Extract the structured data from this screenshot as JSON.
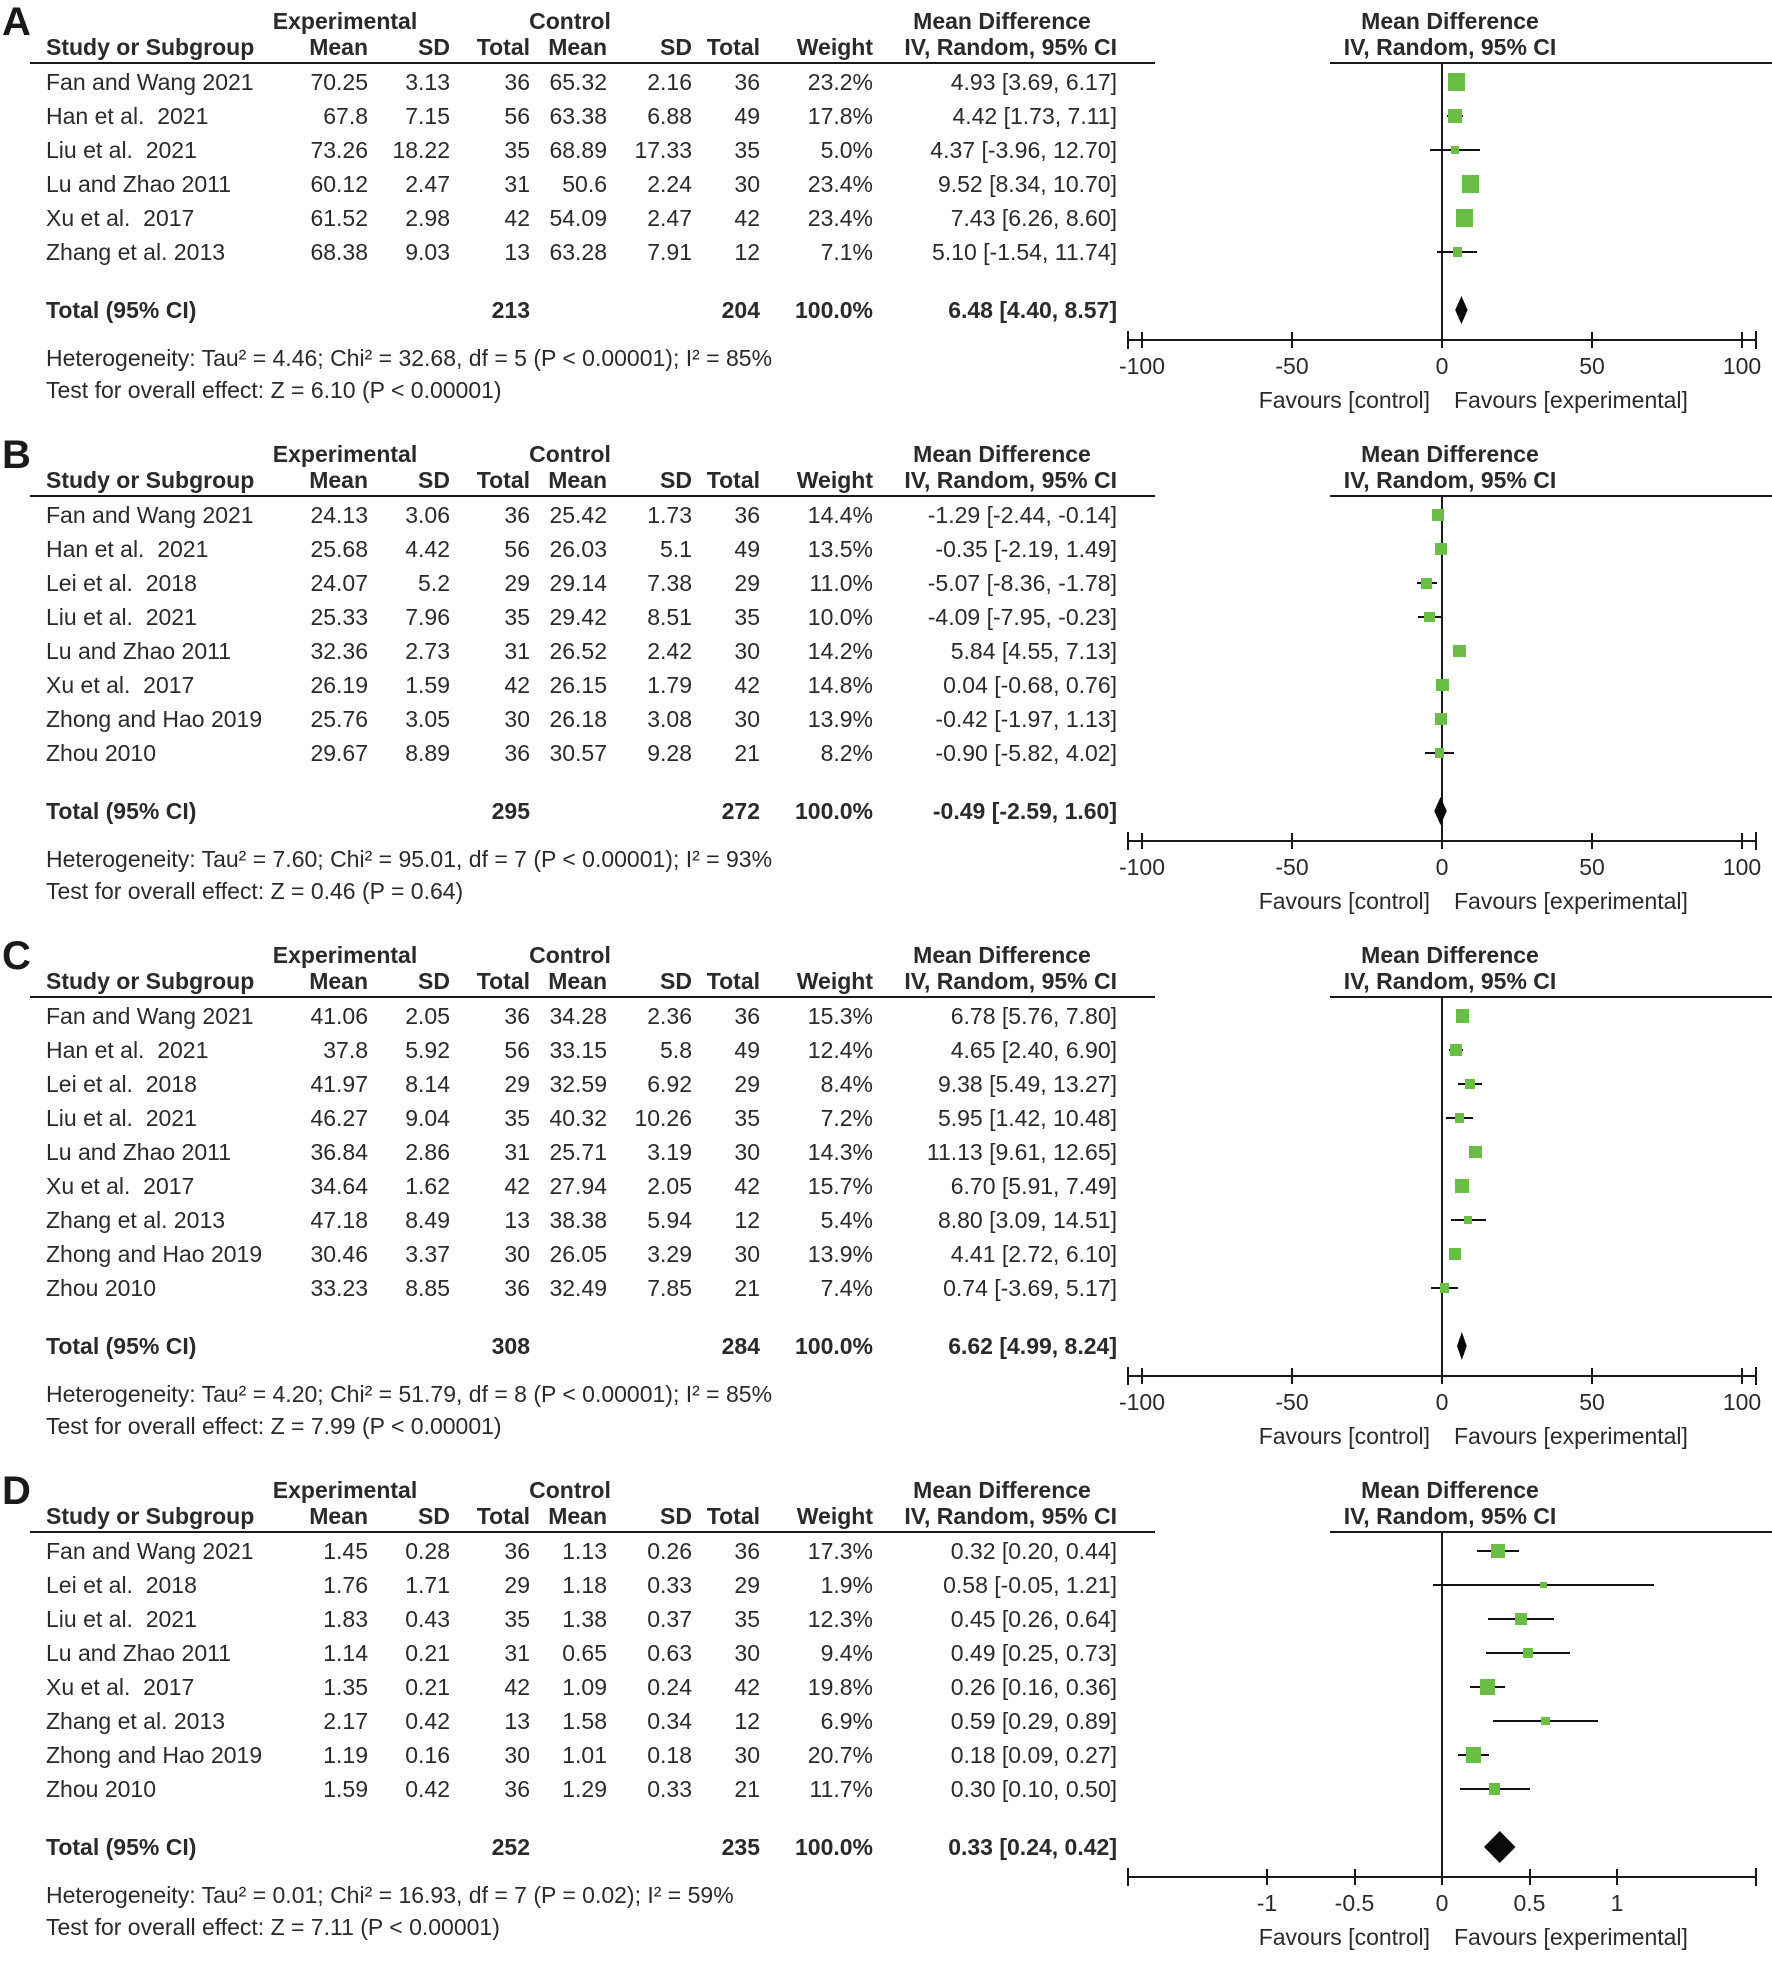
{
  "figure_title": "",
  "accent_color": "#6abe46",
  "line_color": "#1a1a1a",
  "columns": {
    "study": "Study or Subgroup",
    "mean": "Mean",
    "sd": "SD",
    "total": "Total",
    "weight": "Weight",
    "ci": "IV, Random, 95% CI",
    "group_experimental": "Experimental",
    "group_control": "Control",
    "md_text_header": "Mean Difference",
    "md_plot_header": "Mean Difference"
  },
  "chart_data": [
    {
      "type": "forest",
      "panel": "A",
      "studies": [
        {
          "label": "Fan and Wang 2021",
          "exp_mean": "70.25",
          "exp_sd": "3.13",
          "exp_total": "36",
          "ctl_mean": "65.32",
          "ctl_sd": "2.16",
          "ctl_total": "36",
          "weight": "23.2%",
          "weight_val": 23.2,
          "ci_text": "4.93 [3.69, 6.17]",
          "md": 4.93,
          "lo": 3.69,
          "hi": 6.17
        },
        {
          "label": "Han et al.  2021",
          "exp_mean": "67.8",
          "exp_sd": "7.15",
          "exp_total": "56",
          "ctl_mean": "63.38",
          "ctl_sd": "6.88",
          "ctl_total": "49",
          "weight": "17.8%",
          "weight_val": 17.8,
          "ci_text": "4.42 [1.73, 7.11]",
          "md": 4.42,
          "lo": 1.73,
          "hi": 7.11
        },
        {
          "label": "Liu et al.  2021",
          "exp_mean": "73.26",
          "exp_sd": "18.22",
          "exp_total": "35",
          "ctl_mean": "68.89",
          "ctl_sd": "17.33",
          "ctl_total": "35",
          "weight": "5.0%",
          "weight_val": 5.0,
          "ci_text": "4.37 [-3.96, 12.70]",
          "md": 4.37,
          "lo": -3.96,
          "hi": 12.7
        },
        {
          "label": "Lu and Zhao 2011",
          "exp_mean": "60.12",
          "exp_sd": "2.47",
          "exp_total": "31",
          "ctl_mean": "50.6",
          "ctl_sd": "2.24",
          "ctl_total": "30",
          "weight": "23.4%",
          "weight_val": 23.4,
          "ci_text": "9.52 [8.34, 10.70]",
          "md": 9.52,
          "lo": 8.34,
          "hi": 10.7
        },
        {
          "label": "Xu et al.  2017",
          "exp_mean": "61.52",
          "exp_sd": "2.98",
          "exp_total": "42",
          "ctl_mean": "54.09",
          "ctl_sd": "2.47",
          "ctl_total": "42",
          "weight": "23.4%",
          "weight_val": 23.4,
          "ci_text": "7.43 [6.26, 8.60]",
          "md": 7.43,
          "lo": 6.26,
          "hi": 8.6
        },
        {
          "label": "Zhang et al. 2013",
          "exp_mean": "68.38",
          "exp_sd": "9.03",
          "exp_total": "13",
          "ctl_mean": "63.28",
          "ctl_sd": "7.91",
          "ctl_total": "12",
          "weight": "7.1%",
          "weight_val": 7.1,
          "ci_text": "5.10 [-1.54, 11.74]",
          "md": 5.1,
          "lo": -1.54,
          "hi": 11.74
        }
      ],
      "total": {
        "label": "Total (95% CI)",
        "exp_total": "213",
        "ctl_total": "204",
        "weight": "100.0%",
        "ci_text": "6.48 [4.40, 8.57]",
        "md": 6.48,
        "lo": 4.4,
        "hi": 8.57
      },
      "heterogeneity": "Heterogeneity: Tau² = 4.46; Chi² = 32.68, df = 5 (P < 0.00001); I² = 85%",
      "overall_effect": "Test for overall effect: Z = 6.10 (P < 0.00001)",
      "axis": {
        "tick_labels": [
          "-100",
          "-50",
          "0",
          "50",
          "100"
        ],
        "tick_values": [
          -100,
          -50,
          0,
          50,
          100
        ],
        "range_max": 105,
        "favours_left": "Favours [control]",
        "favours_right": "Favours [experimental]"
      }
    },
    {
      "type": "forest",
      "panel": "B",
      "studies": [
        {
          "label": "Fan and Wang 2021",
          "exp_mean": "24.13",
          "exp_sd": "3.06",
          "exp_total": "36",
          "ctl_mean": "25.42",
          "ctl_sd": "1.73",
          "ctl_total": "36",
          "weight": "14.4%",
          "weight_val": 14.4,
          "ci_text": "-1.29 [-2.44, -0.14]",
          "md": -1.29,
          "lo": -2.44,
          "hi": -0.14
        },
        {
          "label": "Han et al.  2021",
          "exp_mean": "25.68",
          "exp_sd": "4.42",
          "exp_total": "56",
          "ctl_mean": "26.03",
          "ctl_sd": "5.1",
          "ctl_total": "49",
          "weight": "13.5%",
          "weight_val": 13.5,
          "ci_text": "-0.35 [-2.19, 1.49]",
          "md": -0.35,
          "lo": -2.19,
          "hi": 1.49
        },
        {
          "label": "Lei et al.  2018",
          "exp_mean": "24.07",
          "exp_sd": "5.2",
          "exp_total": "29",
          "ctl_mean": "29.14",
          "ctl_sd": "7.38",
          "ctl_total": "29",
          "weight": "11.0%",
          "weight_val": 11.0,
          "ci_text": "-5.07 [-8.36, -1.78]",
          "md": -5.07,
          "lo": -8.36,
          "hi": -1.78
        },
        {
          "label": "Liu et al.  2021",
          "exp_mean": "25.33",
          "exp_sd": "7.96",
          "exp_total": "35",
          "ctl_mean": "29.42",
          "ctl_sd": "8.51",
          "ctl_total": "35",
          "weight": "10.0%",
          "weight_val": 10.0,
          "ci_text": "-4.09 [-7.95, -0.23]",
          "md": -4.09,
          "lo": -7.95,
          "hi": -0.23
        },
        {
          "label": "Lu and Zhao 2011",
          "exp_mean": "32.36",
          "exp_sd": "2.73",
          "exp_total": "31",
          "ctl_mean": "26.52",
          "ctl_sd": "2.42",
          "ctl_total": "30",
          "weight": "14.2%",
          "weight_val": 14.2,
          "ci_text": "5.84 [4.55, 7.13]",
          "md": 5.84,
          "lo": 4.55,
          "hi": 7.13
        },
        {
          "label": "Xu et al.  2017",
          "exp_mean": "26.19",
          "exp_sd": "1.59",
          "exp_total": "42",
          "ctl_mean": "26.15",
          "ctl_sd": "1.79",
          "ctl_total": "42",
          "weight": "14.8%",
          "weight_val": 14.8,
          "ci_text": "0.04 [-0.68, 0.76]",
          "md": 0.04,
          "lo": -0.68,
          "hi": 0.76
        },
        {
          "label": "Zhong and Hao 2019",
          "exp_mean": "25.76",
          "exp_sd": "3.05",
          "exp_total": "30",
          "ctl_mean": "26.18",
          "ctl_sd": "3.08",
          "ctl_total": "30",
          "weight": "13.9%",
          "weight_val": 13.9,
          "ci_text": "-0.42 [-1.97, 1.13]",
          "md": -0.42,
          "lo": -1.97,
          "hi": 1.13
        },
        {
          "label": "Zhou 2010",
          "exp_mean": "29.67",
          "exp_sd": "8.89",
          "exp_total": "36",
          "ctl_mean": "30.57",
          "ctl_sd": "9.28",
          "ctl_total": "21",
          "weight": "8.2%",
          "weight_val": 8.2,
          "ci_text": "-0.90 [-5.82, 4.02]",
          "md": -0.9,
          "lo": -5.82,
          "hi": 4.02
        }
      ],
      "total": {
        "label": "Total (95% CI)",
        "exp_total": "295",
        "ctl_total": "272",
        "weight": "100.0%",
        "ci_text": "-0.49 [-2.59, 1.60]",
        "md": -0.49,
        "lo": -2.59,
        "hi": 1.6
      },
      "heterogeneity": "Heterogeneity: Tau² = 7.60; Chi² = 95.01, df = 7 (P < 0.00001); I² = 93%",
      "overall_effect": "Test for overall effect: Z = 0.46 (P = 0.64)",
      "axis": {
        "tick_labels": [
          "-100",
          "-50",
          "0",
          "50",
          "100"
        ],
        "tick_values": [
          -100,
          -50,
          0,
          50,
          100
        ],
        "range_max": 105,
        "favours_left": "Favours [control]",
        "favours_right": "Favours [experimental]"
      }
    },
    {
      "type": "forest",
      "panel": "C",
      "studies": [
        {
          "label": "Fan and Wang 2021",
          "exp_mean": "41.06",
          "exp_sd": "2.05",
          "exp_total": "36",
          "ctl_mean": "34.28",
          "ctl_sd": "2.36",
          "ctl_total": "36",
          "weight": "15.3%",
          "weight_val": 15.3,
          "ci_text": "6.78 [5.76, 7.80]",
          "md": 6.78,
          "lo": 5.76,
          "hi": 7.8
        },
        {
          "label": "Han et al.  2021",
          "exp_mean": "37.8",
          "exp_sd": "5.92",
          "exp_total": "56",
          "ctl_mean": "33.15",
          "ctl_sd": "5.8",
          "ctl_total": "49",
          "weight": "12.4%",
          "weight_val": 12.4,
          "ci_text": "4.65 [2.40, 6.90]",
          "md": 4.65,
          "lo": 2.4,
          "hi": 6.9
        },
        {
          "label": "Lei et al.  2018",
          "exp_mean": "41.97",
          "exp_sd": "8.14",
          "exp_total": "29",
          "ctl_mean": "32.59",
          "ctl_sd": "6.92",
          "ctl_total": "29",
          "weight": "8.4%",
          "weight_val": 8.4,
          "ci_text": "9.38 [5.49, 13.27]",
          "md": 9.38,
          "lo": 5.49,
          "hi": 13.27
        },
        {
          "label": "Liu et al.  2021",
          "exp_mean": "46.27",
          "exp_sd": "9.04",
          "exp_total": "35",
          "ctl_mean": "40.32",
          "ctl_sd": "10.26",
          "ctl_total": "35",
          "weight": "7.2%",
          "weight_val": 7.2,
          "ci_text": "5.95 [1.42, 10.48]",
          "md": 5.95,
          "lo": 1.42,
          "hi": 10.48
        },
        {
          "label": "Lu and Zhao 2011",
          "exp_mean": "36.84",
          "exp_sd": "2.86",
          "exp_total": "31",
          "ctl_mean": "25.71",
          "ctl_sd": "3.19",
          "ctl_total": "30",
          "weight": "14.3%",
          "weight_val": 14.3,
          "ci_text": "11.13 [9.61, 12.65]",
          "md": 11.13,
          "lo": 9.61,
          "hi": 12.65
        },
        {
          "label": "Xu et al.  2017",
          "exp_mean": "34.64",
          "exp_sd": "1.62",
          "exp_total": "42",
          "ctl_mean": "27.94",
          "ctl_sd": "2.05",
          "ctl_total": "42",
          "weight": "15.7%",
          "weight_val": 15.7,
          "ci_text": "6.70 [5.91, 7.49]",
          "md": 6.7,
          "lo": 5.91,
          "hi": 7.49
        },
        {
          "label": "Zhang et al. 2013",
          "exp_mean": "47.18",
          "exp_sd": "8.49",
          "exp_total": "13",
          "ctl_mean": "38.38",
          "ctl_sd": "5.94",
          "ctl_total": "12",
          "weight": "5.4%",
          "weight_val": 5.4,
          "ci_text": "8.80 [3.09, 14.51]",
          "md": 8.8,
          "lo": 3.09,
          "hi": 14.51
        },
        {
          "label": "Zhong and Hao 2019",
          "exp_mean": "30.46",
          "exp_sd": "3.37",
          "exp_total": "30",
          "ctl_mean": "26.05",
          "ctl_sd": "3.29",
          "ctl_total": "30",
          "weight": "13.9%",
          "weight_val": 13.9,
          "ci_text": "4.41 [2.72, 6.10]",
          "md": 4.41,
          "lo": 2.72,
          "hi": 6.1
        },
        {
          "label": "Zhou 2010",
          "exp_mean": "33.23",
          "exp_sd": "8.85",
          "exp_total": "36",
          "ctl_mean": "32.49",
          "ctl_sd": "7.85",
          "ctl_total": "21",
          "weight": "7.4%",
          "weight_val": 7.4,
          "ci_text": "0.74 [-3.69, 5.17]",
          "md": 0.74,
          "lo": -3.69,
          "hi": 5.17
        }
      ],
      "total": {
        "label": "Total (95% CI)",
        "exp_total": "308",
        "ctl_total": "284",
        "weight": "100.0%",
        "ci_text": "6.62 [4.99, 8.24]",
        "md": 6.62,
        "lo": 4.99,
        "hi": 8.24
      },
      "heterogeneity": "Heterogeneity: Tau² = 4.20; Chi² = 51.79, df = 8 (P < 0.00001); I² = 85%",
      "overall_effect": "Test for overall effect: Z = 7.99 (P < 0.00001)",
      "axis": {
        "tick_labels": [
          "-100",
          "-50",
          "0",
          "50",
          "100"
        ],
        "tick_values": [
          -100,
          -50,
          0,
          50,
          100
        ],
        "range_max": 105,
        "favours_left": "Favours [control]",
        "favours_right": "Favours [experimental]"
      }
    },
    {
      "type": "forest",
      "panel": "D",
      "studies": [
        {
          "label": "Fan and Wang 2021",
          "exp_mean": "1.45",
          "exp_sd": "0.28",
          "exp_total": "36",
          "ctl_mean": "1.13",
          "ctl_sd": "0.26",
          "ctl_total": "36",
          "weight": "17.3%",
          "weight_val": 17.3,
          "ci_text": "0.32 [0.20, 0.44]",
          "md": 0.32,
          "lo": 0.2,
          "hi": 0.44
        },
        {
          "label": "Lei et al.  2018",
          "exp_mean": "1.76",
          "exp_sd": "1.71",
          "exp_total": "29",
          "ctl_mean": "1.18",
          "ctl_sd": "0.33",
          "ctl_total": "29",
          "weight": "1.9%",
          "weight_val": 1.9,
          "ci_text": "0.58 [-0.05, 1.21]",
          "md": 0.58,
          "lo": -0.05,
          "hi": 1.21
        },
        {
          "label": "Liu et al.  2021",
          "exp_mean": "1.83",
          "exp_sd": "0.43",
          "exp_total": "35",
          "ctl_mean": "1.38",
          "ctl_sd": "0.37",
          "ctl_total": "35",
          "weight": "12.3%",
          "weight_val": 12.3,
          "ci_text": "0.45 [0.26, 0.64]",
          "md": 0.45,
          "lo": 0.26,
          "hi": 0.64
        },
        {
          "label": "Lu and Zhao 2011",
          "exp_mean": "1.14",
          "exp_sd": "0.21",
          "exp_total": "31",
          "ctl_mean": "0.65",
          "ctl_sd": "0.63",
          "ctl_total": "30",
          "weight": "9.4%",
          "weight_val": 9.4,
          "ci_text": "0.49 [0.25, 0.73]",
          "md": 0.49,
          "lo": 0.25,
          "hi": 0.73
        },
        {
          "label": "Xu et al.  2017",
          "exp_mean": "1.35",
          "exp_sd": "0.21",
          "exp_total": "42",
          "ctl_mean": "1.09",
          "ctl_sd": "0.24",
          "ctl_total": "42",
          "weight": "19.8%",
          "weight_val": 19.8,
          "ci_text": "0.26 [0.16, 0.36]",
          "md": 0.26,
          "lo": 0.16,
          "hi": 0.36
        },
        {
          "label": "Zhang et al. 2013",
          "exp_mean": "2.17",
          "exp_sd": "0.42",
          "exp_total": "13",
          "ctl_mean": "1.58",
          "ctl_sd": "0.34",
          "ctl_total": "12",
          "weight": "6.9%",
          "weight_val": 6.9,
          "ci_text": "0.59 [0.29, 0.89]",
          "md": 0.59,
          "lo": 0.29,
          "hi": 0.89
        },
        {
          "label": "Zhong and Hao 2019",
          "exp_mean": "1.19",
          "exp_sd": "0.16",
          "exp_total": "30",
          "ctl_mean": "1.01",
          "ctl_sd": "0.18",
          "ctl_total": "30",
          "weight": "20.7%",
          "weight_val": 20.7,
          "ci_text": "0.18 [0.09, 0.27]",
          "md": 0.18,
          "lo": 0.09,
          "hi": 0.27
        },
        {
          "label": "Zhou 2010",
          "exp_mean": "1.59",
          "exp_sd": "0.42",
          "exp_total": "36",
          "ctl_mean": "1.29",
          "ctl_sd": "0.33",
          "ctl_total": "21",
          "weight": "11.7%",
          "weight_val": 11.7,
          "ci_text": "0.30 [0.10, 0.50]",
          "md": 0.3,
          "lo": 0.1,
          "hi": 0.5
        }
      ],
      "total": {
        "label": "Total (95% CI)",
        "exp_total": "252",
        "ctl_total": "235",
        "weight": "100.0%",
        "ci_text": "0.33 [0.24, 0.42]",
        "md": 0.33,
        "lo": 0.24,
        "hi": 0.42
      },
      "heterogeneity": "Heterogeneity: Tau² = 0.01; Chi² = 16.93, df = 7 (P = 0.02); I² = 59%",
      "overall_effect": "Test for overall effect: Z = 7.11 (P < 0.00001)",
      "axis": {
        "tick_labels": [
          "-1",
          "-0.5",
          "0",
          "0.5",
          "1"
        ],
        "tick_values": [
          -1,
          -0.5,
          0,
          0.5,
          1
        ],
        "range_max": 1.8,
        "favours_left": "Favours [control]",
        "favours_right": "Favours [experimental]"
      }
    }
  ]
}
